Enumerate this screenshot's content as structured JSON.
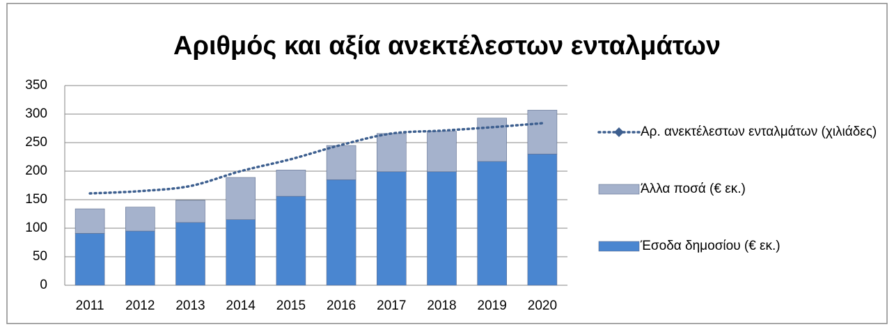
{
  "chart_data": {
    "type": "bar",
    "stacked": true,
    "title": "Αριθμός και αξία ανεκτέλεστων ενταλμάτων",
    "categories": [
      "2011",
      "2012",
      "2013",
      "2014",
      "2015",
      "2016",
      "2017",
      "2018",
      "2019",
      "2020"
    ],
    "series": [
      {
        "name": "Έσοδα δημοσίου (€ εκ.)",
        "type": "bar",
        "color": "#4a86d0",
        "values": [
          91,
          95,
          110,
          115,
          156,
          185,
          199,
          199,
          217,
          230
        ]
      },
      {
        "name": "Άλλα ποσά (€ εκ.)",
        "type": "bar",
        "color": "#a5b2cc",
        "values": [
          43,
          42,
          39,
          74,
          46,
          60,
          67,
          71,
          76,
          77
        ]
      },
      {
        "name": "Αρ. ανεκτέλεστων ενταλμάτων (χιλιάδες)",
        "type": "line",
        "color": "#3d5f8f",
        "values": [
          161,
          165,
          174,
          200,
          221,
          246,
          266,
          271,
          277,
          284
        ]
      }
    ],
    "ylim": [
      0,
      350
    ],
    "yticks": [
      0,
      50,
      100,
      150,
      200,
      250,
      300,
      350
    ],
    "grid": true,
    "legend": "right"
  }
}
